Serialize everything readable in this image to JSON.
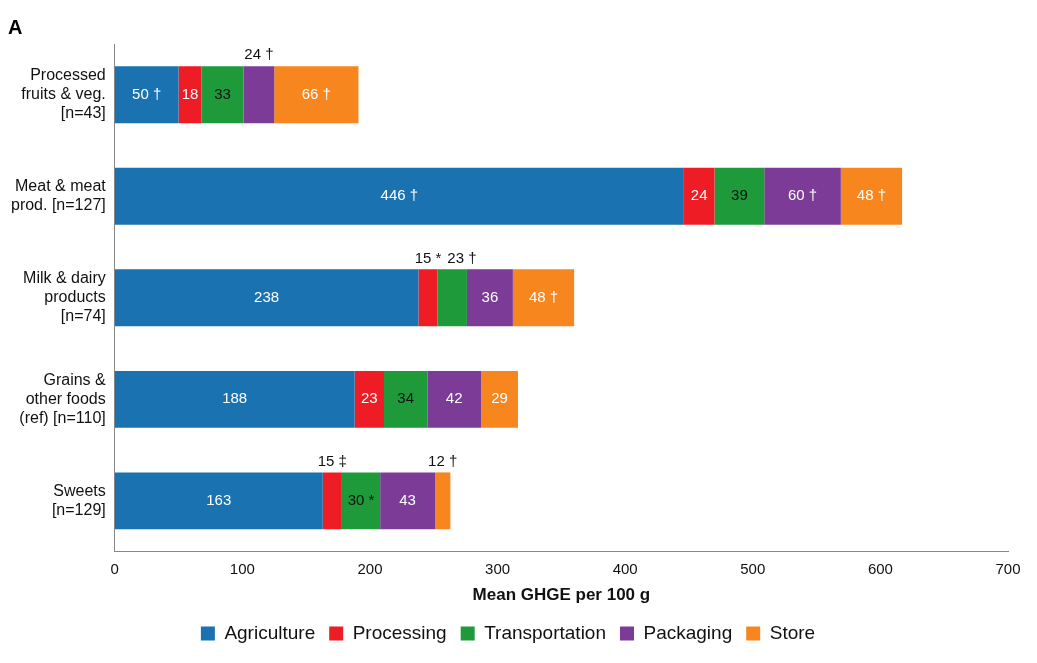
{
  "chart_data": {
    "type": "bar",
    "orientation": "horizontal",
    "stacked": true,
    "title": "A",
    "xlabel": "Mean GHGE per 100 g",
    "categories": [
      "Processed\nfruits & veg.\n[n=43]",
      "Meat & meat\nprod. [n=127]",
      "Milk & dairy\nproducts\n[n=74]",
      "Grains &\nother foods\n(ref) [n=110]",
      "Sweets\n[n=129]"
    ],
    "series": [
      {
        "name": "Agriculture",
        "color": "#1b72b0",
        "values": [
          50,
          446,
          238,
          188,
          163
        ],
        "value_labels": [
          "50 †",
          "446 †",
          "238",
          "188",
          "163"
        ]
      },
      {
        "name": "Processing",
        "color": "#ee1c25",
        "values": [
          18,
          24,
          15,
          23,
          15
        ],
        "value_labels": [
          "18",
          "24",
          "15 *",
          "23",
          "15 ‡"
        ]
      },
      {
        "name": "Transportation",
        "color": "#1f9a3b",
        "values": [
          33,
          39,
          23,
          34,
          30
        ],
        "value_labels": [
          "33",
          "39",
          "23 †",
          "34",
          "30 *"
        ]
      },
      {
        "name": "Packaging",
        "color": "#7c3b97",
        "values": [
          24,
          60,
          36,
          42,
          43
        ],
        "value_labels": [
          "24 †",
          "60 †",
          "36",
          "42",
          "43"
        ]
      },
      {
        "name": "Store",
        "color": "#f7861f",
        "values": [
          66,
          48,
          48,
          29,
          12
        ],
        "value_labels": [
          "66 †",
          "48 †",
          "48 †",
          "29",
          "12 †"
        ]
      }
    ],
    "xlim": [
      0,
      700
    ],
    "xticks": [
      0,
      100,
      200,
      300,
      400,
      500,
      600,
      700
    ],
    "grid": false,
    "legend": "bottom"
  }
}
